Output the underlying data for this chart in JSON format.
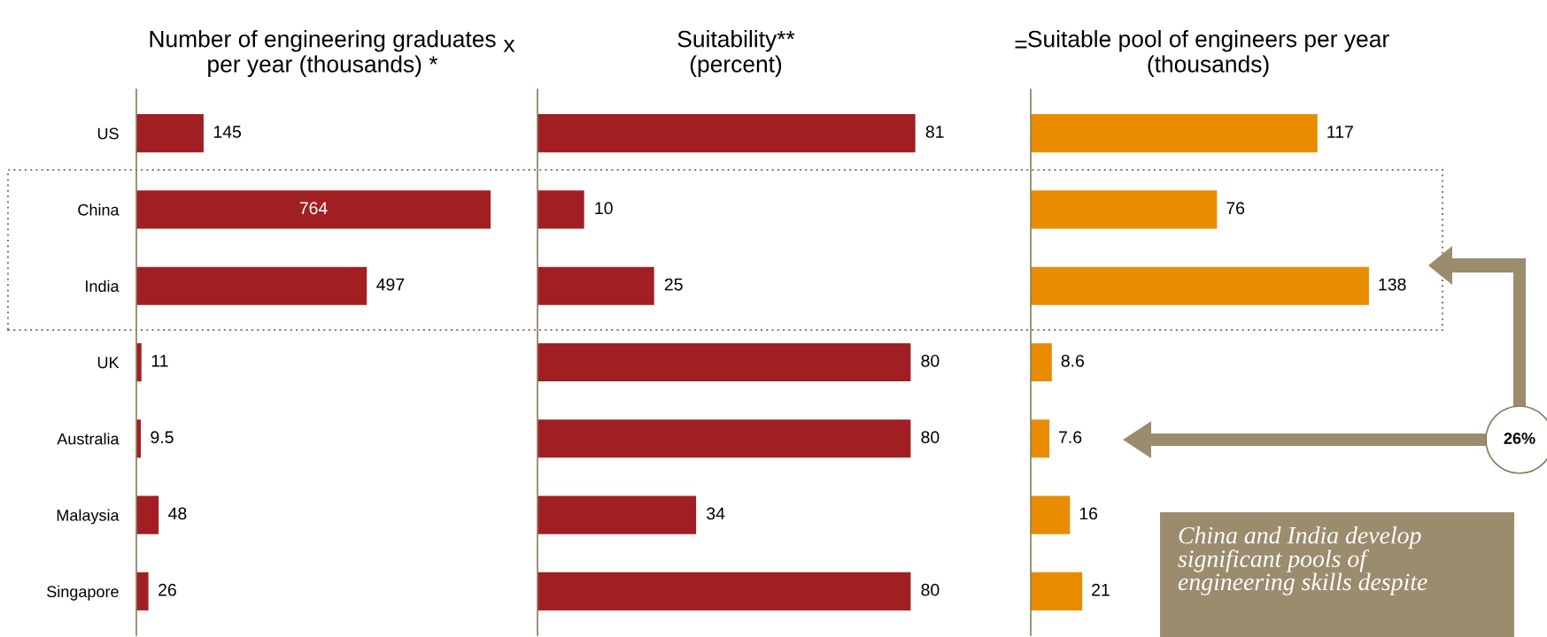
{
  "chart_data": [
    {
      "type": "bar",
      "orientation": "horizontal",
      "title": "Number of engineering graduates\nper year (thousands) *",
      "categories": [
        "US",
        "China",
        "India",
        "UK",
        "Australia",
        "Malaysia",
        "Singapore"
      ],
      "values": [
        145,
        764,
        497,
        11,
        9.5,
        48,
        26
      ],
      "color": "#a11f22",
      "data_labels": true,
      "tick_labels": "y",
      "annotations": [
        "x"
      ]
    },
    {
      "type": "bar",
      "orientation": "horizontal",
      "title": "Suitability**\n(percent)",
      "values": [
        81,
        10,
        25,
        80,
        80,
        34,
        80
      ],
      "color": "#a11f22",
      "data_labels": true,
      "tick_labels": false,
      "annotations": [
        "="
      ]
    },
    {
      "type": "bar",
      "orientation": "horizontal",
      "title": "Suitable pool of engineers per year\n(thousands)",
      "values": [
        117,
        76,
        138,
        8.6,
        7.6,
        16,
        21
      ],
      "color": "#e98c00",
      "data_labels": true,
      "tick_labels": false,
      "annotations": [
        "26%",
        "China and India develop\nsignificant pools of\nengineering skills despite"
      ]
    }
  ]
}
